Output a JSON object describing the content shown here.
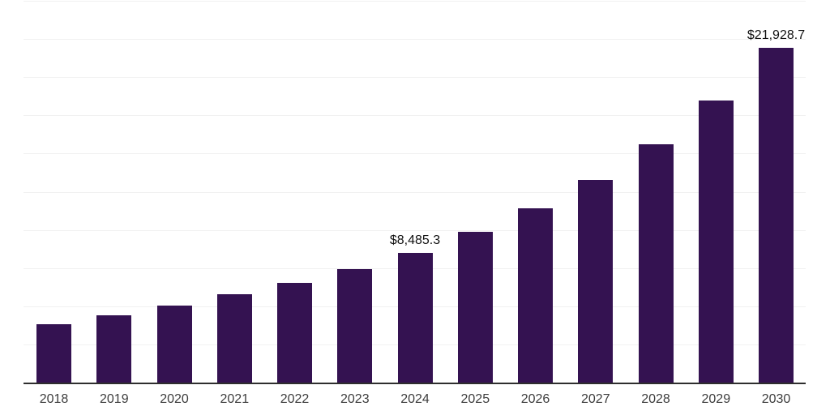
{
  "page": {
    "background_color": "#ffffff"
  },
  "chart_data": {
    "type": "bar",
    "title": "",
    "xlabel": "",
    "ylabel": "",
    "categories": [
      "2018",
      "2019",
      "2020",
      "2021",
      "2022",
      "2023",
      "2024",
      "2025",
      "2026",
      "2027",
      "2028",
      "2029",
      "2030"
    ],
    "values": [
      3820,
      4400,
      5030,
      5770,
      6530,
      7410,
      8485.3,
      9870,
      11400,
      13250,
      15590,
      18450,
      21928.7
    ],
    "labeled_points": [
      {
        "category": "2024",
        "label": "$8,485.3"
      },
      {
        "category": "2030",
        "label": "$21,928.7"
      }
    ],
    "ylim": [
      0,
      25000
    ],
    "gridline_step": 2500,
    "grid": "horizontal",
    "legend": "none",
    "y_tick_labels_visible": false,
    "bar_color": "#341251",
    "axis_line_color": "#2e2e2e",
    "gridline_color": "#f1f1f1",
    "tick_label_color": "#3d3d3d",
    "data_label_color": "#111111"
  }
}
